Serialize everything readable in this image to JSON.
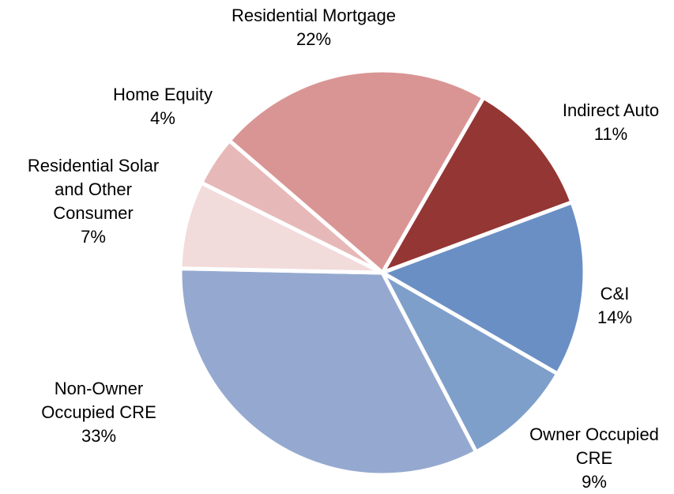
{
  "chart_data": {
    "type": "pie",
    "categories": [
      "Indirect Auto",
      "C&I",
      "Owner Occupied CRE",
      "Non-Owner Occupied CRE",
      "Residential Solar and Other Consumer",
      "Home Equity",
      "Residential Mortgage"
    ],
    "values": [
      11,
      14,
      9,
      33,
      7,
      4,
      22
    ],
    "value_labels": [
      "11%",
      "14%",
      "9%",
      "33%",
      "7%",
      "4%",
      "22%"
    ],
    "colors": [
      "#943634",
      "#6a8fc4",
      "#7f9fcb",
      "#95a9d0",
      "#f2dbdb",
      "#e6b9b8",
      "#d99594"
    ]
  }
}
